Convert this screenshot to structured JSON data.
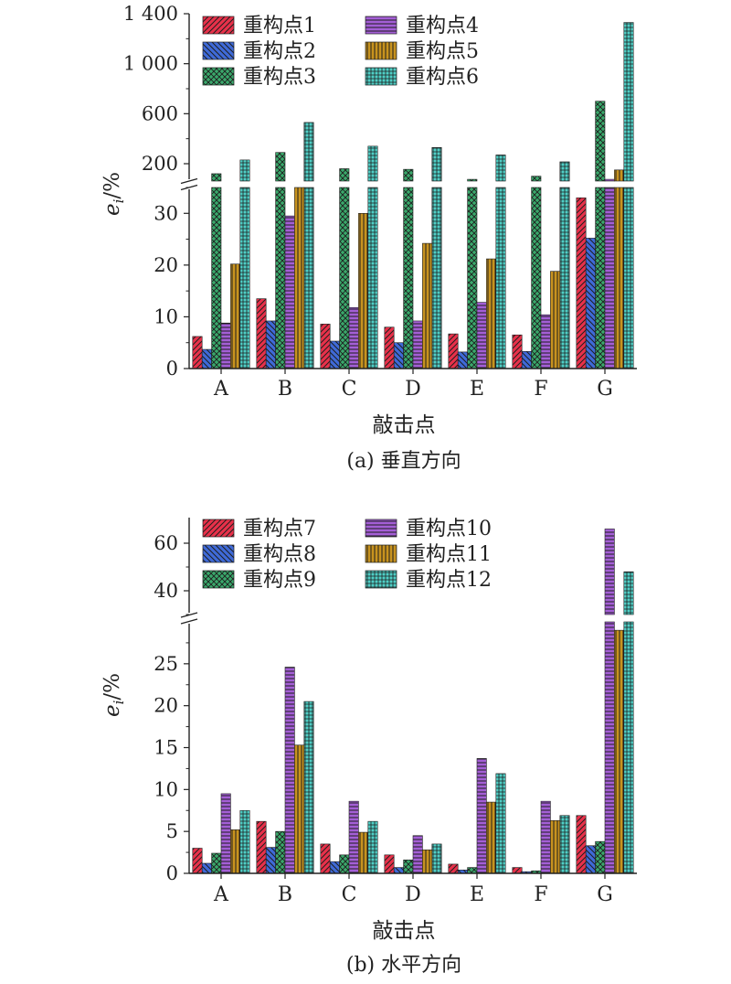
{
  "chart_data": [
    {
      "type": "bar",
      "caption": "(a) 垂直方向",
      "xlabel": "敲击点",
      "ylabel_main": "e",
      "ylabel_sub": "i",
      "ylabel_unit": "/%",
      "categories": [
        "A",
        "B",
        "C",
        "D",
        "E",
        "F",
        "G"
      ],
      "axis_break": true,
      "lower_ylim": [
        0,
        35
      ],
      "lower_ticks": [
        "0",
        "10",
        "20",
        "30"
      ],
      "upper_ylim": [
        50,
        1400
      ],
      "upper_ticks": [
        "200",
        "600",
        "1 000",
        "1 400"
      ],
      "legend_position": "top",
      "series": [
        {
          "name": "重构点1",
          "color": "#e8314a",
          "pattern": "diag-right",
          "values": [
            6.2,
            13.5,
            8.6,
            8.0,
            6.7,
            6.5,
            33.0
          ]
        },
        {
          "name": "重构点2",
          "color": "#3f6ad8",
          "pattern": "diag-left",
          "values": [
            3.7,
            9.2,
            5.3,
            5.0,
            3.2,
            3.3,
            25.2
          ]
        },
        {
          "name": "重构点3",
          "color": "#3aa86b",
          "pattern": "cross",
          "values": [
            120,
            290,
            160,
            155,
            75,
            100,
            700
          ]
        },
        {
          "name": "重构点4",
          "color": "#a45fd6",
          "pattern": "horizontal",
          "values": [
            8.8,
            29.5,
            11.8,
            9.2,
            12.8,
            10.4,
            75
          ]
        },
        {
          "name": "重构点5",
          "color": "#c8931f",
          "pattern": "vertical",
          "values": [
            20.2,
            38,
            30.0,
            24.2,
            21.2,
            18.8,
            150
          ]
        },
        {
          "name": "重构点6",
          "color": "#4fcfc6",
          "pattern": "grid",
          "values": [
            230,
            530,
            340,
            330,
            270,
            215,
            1330
          ]
        }
      ]
    },
    {
      "type": "bar",
      "caption": "(b) 水平方向",
      "xlabel": "敲击点",
      "ylabel_main": "e",
      "ylabel_sub": "i",
      "ylabel_unit": "/%",
      "categories": [
        "A",
        "B",
        "C",
        "D",
        "E",
        "F",
        "G"
      ],
      "axis_break": true,
      "lower_ylim": [
        0,
        30
      ],
      "lower_ticks": [
        "0",
        "5",
        "10",
        "15",
        "20",
        "25"
      ],
      "upper_ylim": [
        30,
        70
      ],
      "upper_ticks": [
        "40",
        "60"
      ],
      "legend_position": "top",
      "series": [
        {
          "name": "重构点7",
          "color": "#e8314a",
          "pattern": "diag-right",
          "values": [
            3.0,
            6.2,
            3.5,
            2.2,
            1.1,
            0.7,
            6.9
          ]
        },
        {
          "name": "重构点8",
          "color": "#3f6ad8",
          "pattern": "diag-left",
          "values": [
            1.2,
            3.1,
            1.4,
            0.7,
            0.4,
            0.2,
            3.3
          ]
        },
        {
          "name": "重构点9",
          "color": "#3aa86b",
          "pattern": "cross",
          "values": [
            2.4,
            5.0,
            2.2,
            1.6,
            0.7,
            0.3,
            3.8
          ]
        },
        {
          "name": "重构点10",
          "color": "#a45fd6",
          "pattern": "horizontal",
          "values": [
            9.5,
            24.6,
            8.6,
            4.5,
            13.7,
            8.6,
            66
          ]
        },
        {
          "name": "重构点11",
          "color": "#c8931f",
          "pattern": "vertical",
          "values": [
            5.2,
            15.3,
            4.9,
            2.8,
            8.5,
            6.3,
            29
          ]
        },
        {
          "name": "重构点12",
          "color": "#4fcfc6",
          "pattern": "grid",
          "values": [
            7.5,
            20.5,
            6.2,
            3.5,
            11.9,
            6.9,
            48
          ]
        }
      ]
    }
  ]
}
